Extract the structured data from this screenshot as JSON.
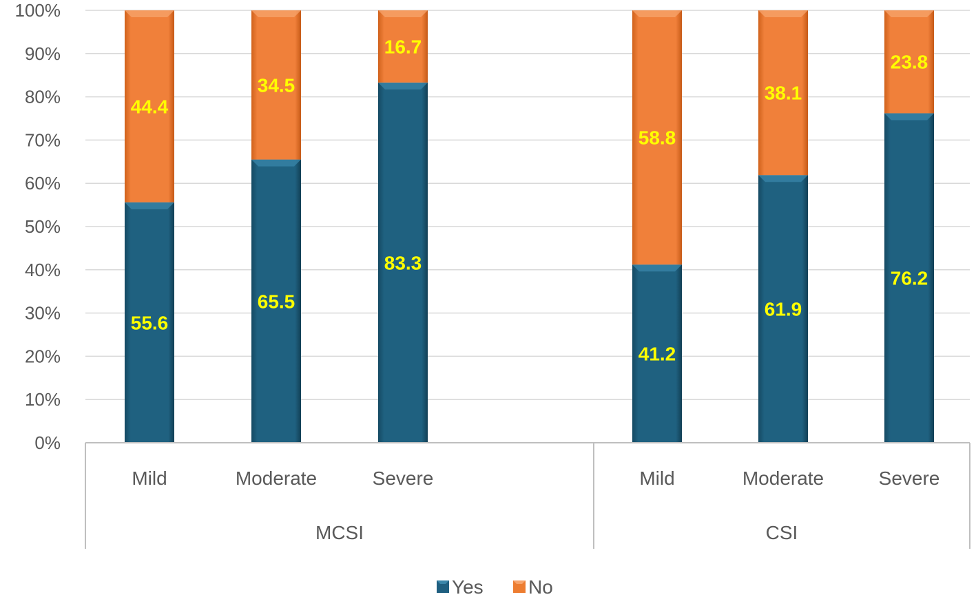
{
  "chart_data": {
    "type": "bar",
    "stacked": "percent",
    "groups": [
      {
        "name": "MCSI",
        "categories": [
          "Mild",
          "Moderate",
          "Severe"
        ]
      },
      {
        "name": "CSI",
        "categories": [
          "Mild",
          "Moderate",
          "Severe"
        ]
      }
    ],
    "series": [
      {
        "name": "Yes",
        "color": "#1f5f80",
        "values": [
          55.6,
          65.5,
          83.3,
          41.2,
          61.9,
          76.2
        ]
      },
      {
        "name": "No",
        "color": "#ed7d31",
        "values": [
          44.4,
          34.5,
          16.7,
          58.8,
          38.1,
          23.8
        ]
      }
    ],
    "y_ticks": [
      "0%",
      "10%",
      "20%",
      "30%",
      "40%",
      "50%",
      "60%",
      "70%",
      "80%",
      "90%",
      "100%"
    ],
    "ylim": [
      0,
      100
    ],
    "grid": true,
    "legend": "bottom-center",
    "data_label_color": "#ffff00"
  }
}
